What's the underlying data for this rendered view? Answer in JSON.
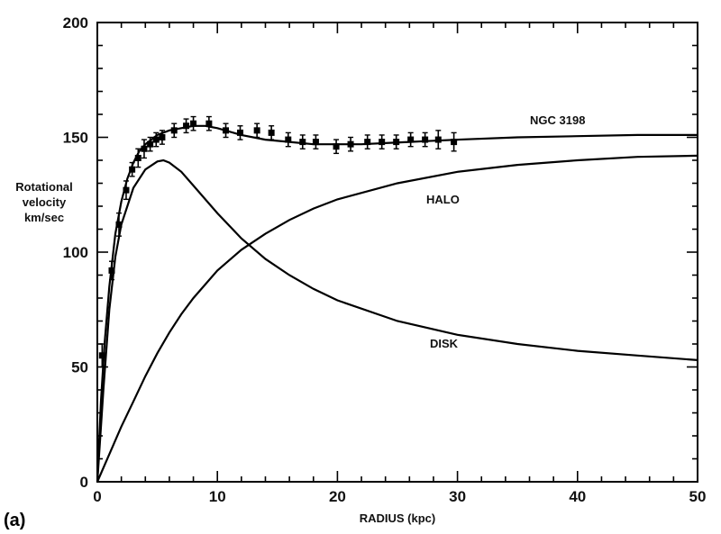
{
  "panel_label": "(a)",
  "chart_data": {
    "type": "line",
    "xlabel": "RADIUS  (kpc)",
    "ylabel": [
      "Rotational",
      "velocity",
      "km/sec"
    ],
    "xlim": [
      0,
      50
    ],
    "ylim": [
      0,
      200
    ],
    "x_ticks": [
      "0",
      "10",
      "20",
      "30",
      "40",
      "50"
    ],
    "y_ticks": [
      "0",
      "50",
      "100",
      "150",
      "200"
    ],
    "grid": false,
    "series": [
      {
        "name": "NGC 3198",
        "x": [
          0,
          0.3,
          0.6,
          1.0,
          1.5,
          2.0,
          2.5,
          3.0,
          3.5,
          4.0,
          5.0,
          6.0,
          7.0,
          8.0,
          9.0,
          10,
          12,
          14,
          16,
          18,
          20,
          22,
          24,
          26,
          28,
          30,
          35,
          40,
          45,
          50
        ],
        "y": [
          0,
          35,
          60,
          85,
          108,
          122,
          132,
          139,
          144,
          147,
          151,
          153,
          154,
          155,
          155,
          154,
          151,
          149,
          148,
          147,
          147,
          147,
          147.5,
          148,
          148.5,
          149,
          150,
          150.5,
          151,
          151
        ]
      },
      {
        "name": "HALO",
        "x": [
          0,
          1,
          2,
          3,
          4,
          5,
          6,
          7,
          8,
          10,
          12,
          14,
          16,
          18,
          20,
          25,
          30,
          35,
          40,
          45,
          50
        ],
        "y": [
          0,
          12,
          24,
          35,
          46,
          56,
          65,
          73,
          80,
          92,
          101,
          108,
          114,
          119,
          123,
          130,
          135,
          138,
          140,
          141.5,
          142
        ]
      },
      {
        "name": "DISK",
        "x": [
          0,
          0.5,
          1,
          1.5,
          2,
          3,
          4,
          5,
          5.5,
          6,
          7,
          8,
          10,
          12,
          14,
          16,
          18,
          20,
          25,
          30,
          35,
          40,
          45,
          50
        ],
        "y": [
          0,
          40,
          75,
          98,
          112,
          128,
          136,
          139.5,
          140,
          139,
          135,
          129,
          117,
          106,
          97,
          90,
          84,
          79,
          70,
          64,
          60,
          57,
          55,
          53
        ]
      }
    ],
    "observations": {
      "x": [
        0.4,
        1.2,
        1.8,
        2.4,
        2.9,
        3.4,
        3.9,
        4.4,
        4.9,
        5.4,
        6.4,
        7.4,
        8.0,
        9.3,
        10.7,
        11.9,
        13.3,
        14.5,
        15.9,
        17.1,
        18.2,
        19.9,
        21.1,
        22.5,
        23.7,
        24.9,
        26.1,
        27.3,
        28.4,
        29.7
      ],
      "y": [
        55,
        92,
        112,
        127,
        136,
        141,
        145,
        147,
        149,
        150,
        153,
        155,
        156,
        156,
        153,
        152,
        153,
        152,
        149,
        148,
        148,
        146,
        147,
        148,
        148,
        148,
        149,
        149,
        149,
        148
      ],
      "err": [
        5,
        4,
        5,
        4,
        3,
        4,
        4,
        3,
        3,
        3,
        3,
        3,
        3,
        3,
        3,
        3,
        3,
        3,
        3,
        3,
        3,
        3,
        3,
        3,
        3,
        3,
        3,
        3,
        4,
        4
      ]
    },
    "curve_labels": [
      "NGC 3198",
      "HALO",
      "DISK"
    ]
  }
}
